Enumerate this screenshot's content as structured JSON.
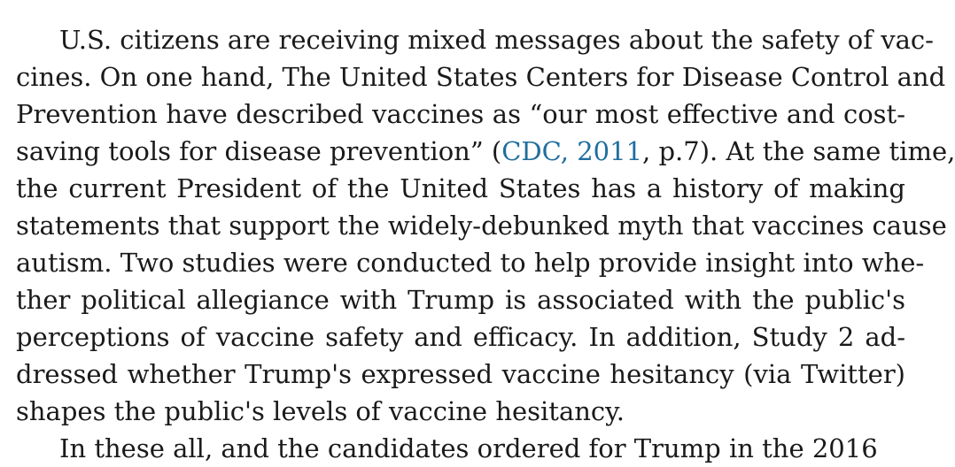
{
  "paragraph": {
    "lines": [
      {
        "text": "U.S. citizens are receiving mixed messages about the safety of vac-"
      },
      {
        "text": "cines. On one hand, The United States Centers for Disease Control and"
      },
      {
        "text": "Prevention have described vaccines as “our most effective and cost-"
      },
      {
        "pre": "saving tools for disease prevention” (",
        "link": "CDC, 2011",
        "post": ", p.7). At the same time,"
      },
      {
        "text": "the current President of the United States has a history of making"
      },
      {
        "text": "statements that support the widely-debunked myth that vaccines cause"
      },
      {
        "text": "autism. Two studies were conducted to help provide insight into whe-"
      },
      {
        "text": "ther political allegiance with Trump is associated with the public's"
      },
      {
        "text": "perceptions of vaccine safety and efficacy. In addition, Study 2 ad-"
      },
      {
        "text": "dressed whether Trump's expressed vaccine hesitancy (via Twitter)"
      },
      {
        "text": "shapes the public's levels of vaccine hesitancy."
      }
    ]
  },
  "next_paragraph": {
    "partial_text": "In these all, and the candidates ordered for Trump in the 2016"
  },
  "colors": {
    "text": "#1a1a1a",
    "citation_link": "#1f6e9e",
    "background": "#ffffff"
  }
}
